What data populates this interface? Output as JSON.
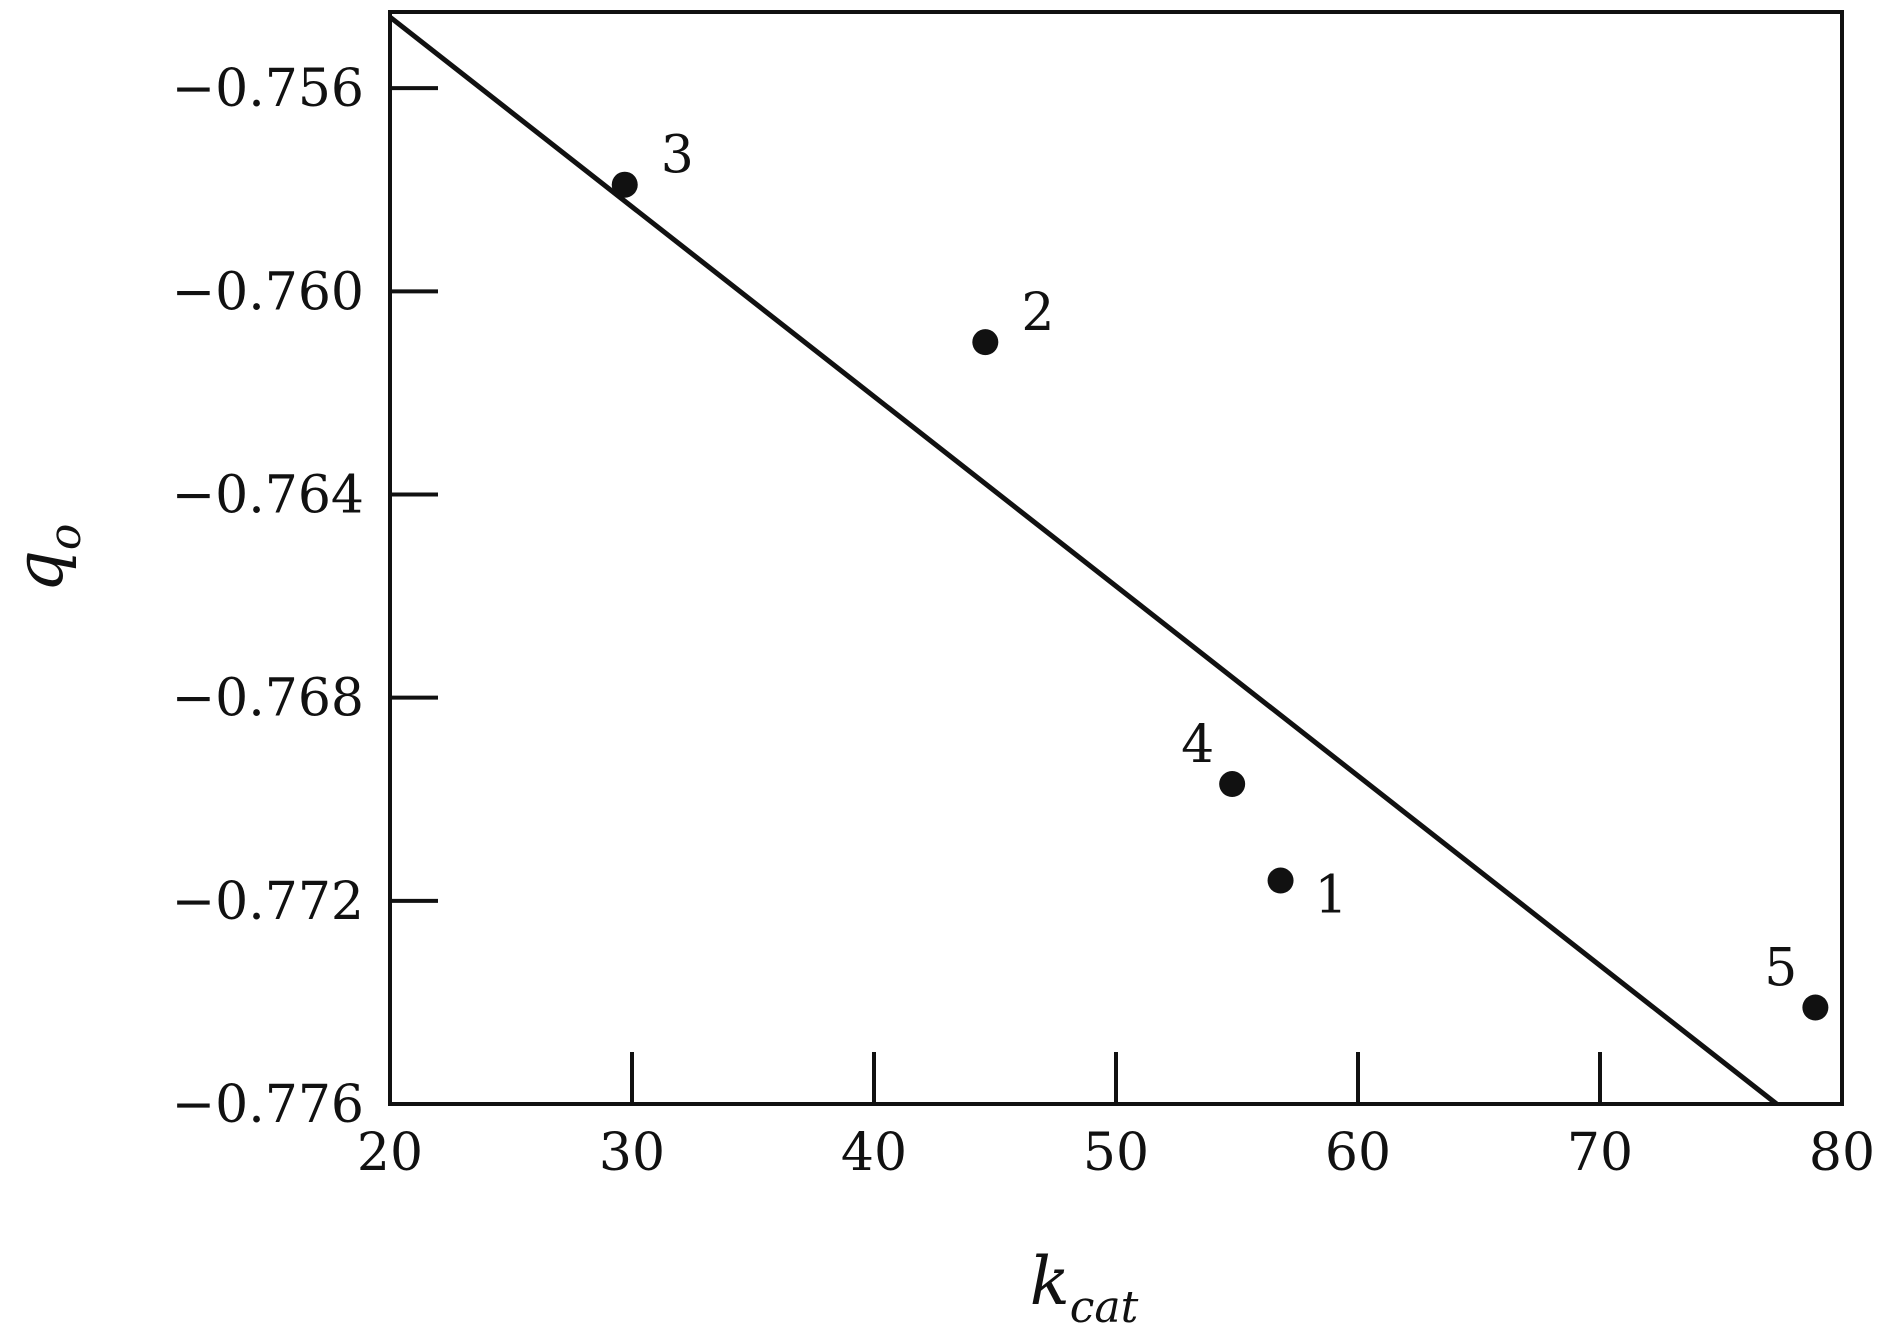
{
  "chart_data": {
    "type": "scatter",
    "xlabel": {
      "main": "k",
      "sub": "cat"
    },
    "ylabel": {
      "main": "q",
      "sub": "o"
    },
    "xlim": [
      20,
      80
    ],
    "ylim": [
      -0.776,
      -0.7545
    ],
    "x_ticks": [
      20,
      30,
      40,
      50,
      60,
      70,
      80
    ],
    "x_tick_labels": [
      "20",
      "30",
      "40",
      "50",
      "60",
      "70",
      "80"
    ],
    "y_ticks": [
      -0.756,
      -0.76,
      -0.764,
      -0.768,
      -0.772,
      -0.776
    ],
    "y_tick_labels": [
      "−0.756",
      "−0.760",
      "−0.764",
      "−0.768",
      "−0.772",
      "−0.776"
    ],
    "grid": false,
    "points": [
      {
        "label": "3",
        "x": 29.7,
        "y": -0.7579,
        "label_side": "upper-right"
      },
      {
        "label": "2",
        "x": 44.6,
        "y": -0.761,
        "label_side": "upper-right"
      },
      {
        "label": "4",
        "x": 54.8,
        "y": -0.7697,
        "label_side": "upper-left"
      },
      {
        "label": "1",
        "x": 56.8,
        "y": -0.7716,
        "label_side": "lower-right"
      },
      {
        "label": "5",
        "x": 78.9,
        "y": -0.7741,
        "label_side": "upper-left"
      }
    ],
    "fit_line": {
      "x": [
        20,
        77.3
      ],
      "y": [
        -0.7546,
        -0.776
      ]
    },
    "colors": {
      "ink": "#111111",
      "background": "#ffffff"
    }
  }
}
